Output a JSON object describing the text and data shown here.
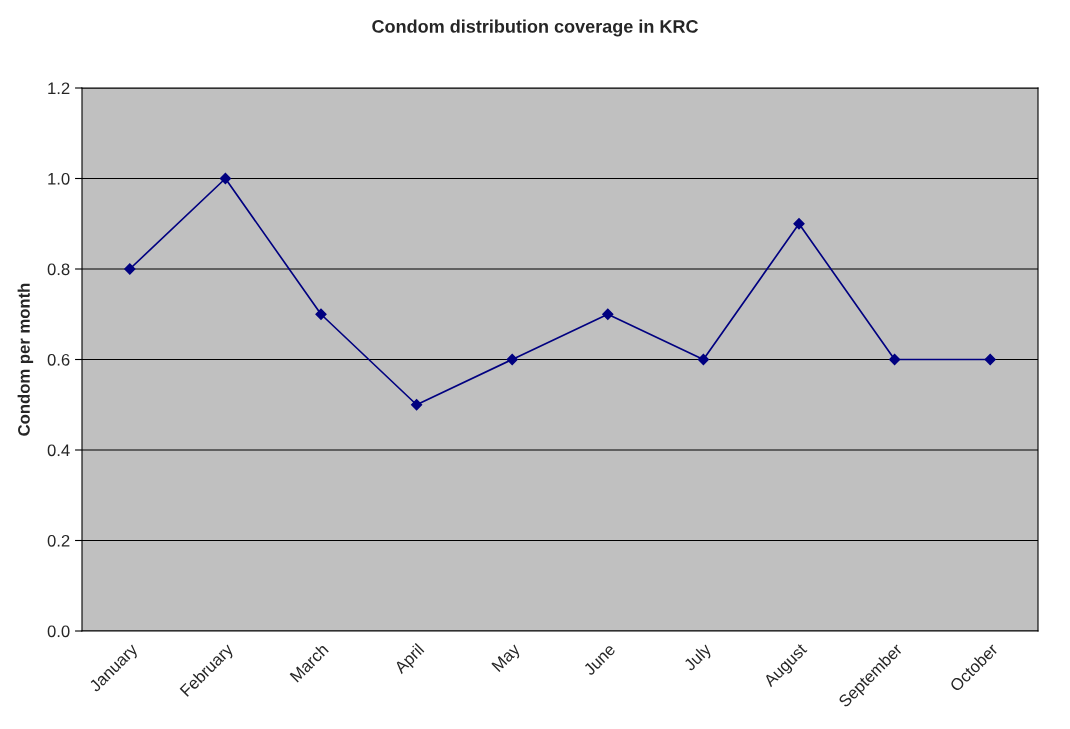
{
  "chart_data": {
    "type": "line",
    "title": "Condom distribution coverage in KRC",
    "ylabel": "Condom per month",
    "categories": [
      "January",
      "February",
      "March",
      "April",
      "May",
      "June",
      "July",
      "August",
      "September",
      "October"
    ],
    "series": [
      {
        "color": "#000080",
        "values": [
          0.8,
          1.0,
          0.7,
          0.5,
          0.6,
          0.7,
          0.6,
          0.9,
          0.6,
          0.6
        ]
      }
    ],
    "ylim": [
      0,
      1.2
    ],
    "yticks": [
      {
        "value": 0,
        "label": "0.0"
      },
      {
        "value": 0.2,
        "label": "0.2"
      },
      {
        "value": 0.4,
        "label": "0.4"
      },
      {
        "value": 0.6,
        "label": "0.6"
      },
      {
        "value": 0.8,
        "label": "0.8"
      },
      {
        "value": 1.0,
        "label": "1.0"
      },
      {
        "value": 1.2,
        "label": "1.2"
      }
    ],
    "grid": "y",
    "marker": "diamond",
    "line_style": "solid"
  }
}
